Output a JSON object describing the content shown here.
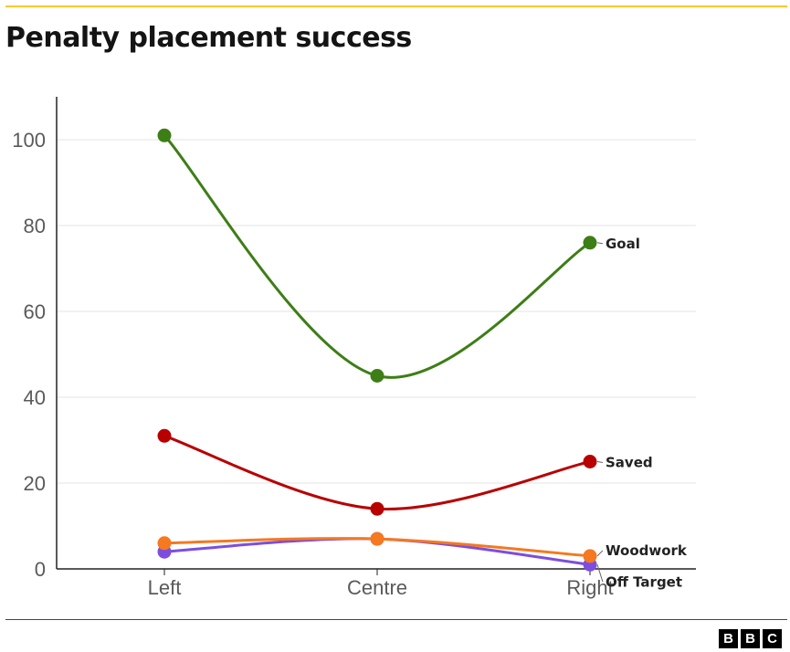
{
  "colors": {
    "accent": "#fdc82f",
    "goal": "#3d7e16",
    "saved": "#b80000",
    "woodwork": "#f47920",
    "off_target": "#7c4ee0"
  },
  "chart_data": {
    "type": "line",
    "title": "Penalty placement success",
    "categories": [
      "Left",
      "Centre",
      "Right"
    ],
    "ylim": [
      0,
      110
    ],
    "yticks": [
      0,
      20,
      40,
      60,
      80,
      100
    ],
    "grid": true,
    "legend": "direct labels at line ends (right)",
    "series": [
      {
        "name": "Goal",
        "values": [
          101,
          45,
          76
        ],
        "color": "#3d7e16"
      },
      {
        "name": "Saved",
        "values": [
          31,
          14,
          25
        ],
        "color": "#b80000"
      },
      {
        "name": "Off Target",
        "values": [
          4,
          7,
          1
        ],
        "color": "#7c4ee0"
      },
      {
        "name": "Woodwork",
        "values": [
          6,
          7,
          3
        ],
        "color": "#f47920"
      }
    ]
  },
  "logo": {
    "letters": [
      "B",
      "B",
      "C"
    ]
  }
}
